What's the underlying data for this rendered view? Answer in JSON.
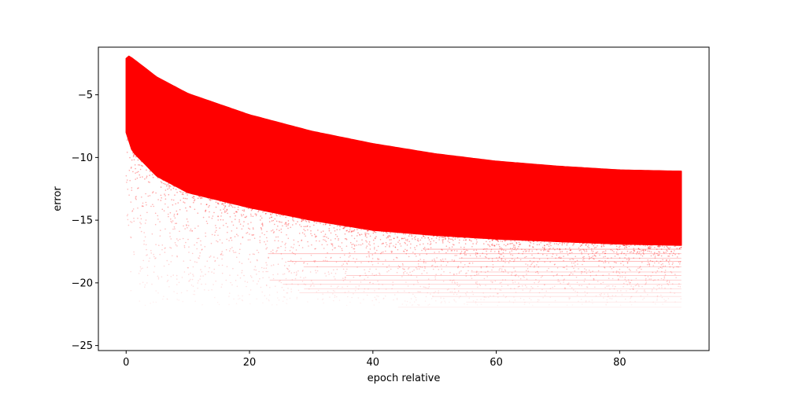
{
  "chart_data": {
    "type": "scatter",
    "title": "",
    "xlabel": "epoch relative",
    "ylabel": "error",
    "xlim": [
      -4.5,
      94.5
    ],
    "ylim": [
      -25.4,
      -1.2
    ],
    "xticks": [
      0,
      20,
      40,
      60,
      80
    ],
    "yticks": [
      -25,
      -20,
      -15,
      -10,
      -5
    ],
    "xtick_labels": [
      "0",
      "20",
      "40",
      "60",
      "80"
    ],
    "ytick_labels": [
      "−25",
      "−20",
      "−15",
      "−10",
      "−5"
    ],
    "grid": false,
    "legend": "none",
    "series": [
      {
        "color": "#ff0000",
        "marker": "point",
        "alpha": "low",
        "x_range": [
          0,
          90
        ],
        "upper_envelope": {
          "x": [
            0,
            0.5,
            5,
            10,
            20,
            30,
            40,
            50,
            60,
            70,
            80,
            90
          ],
          "y": [
            -2.1,
            -1.9,
            -3.6,
            -4.9,
            -6.6,
            -7.9,
            -8.9,
            -9.7,
            -10.3,
            -10.7,
            -11.0,
            -11.1
          ]
        },
        "dense_lower_bound": {
          "x": [
            0,
            1,
            5,
            10,
            20,
            30,
            40,
            50,
            60,
            70,
            80,
            90
          ],
          "y": [
            -8.0,
            -9.5,
            -11.5,
            -12.8,
            -14.0,
            -15.0,
            -15.8,
            -16.2,
            -16.5,
            -16.7,
            -16.9,
            -17.0
          ]
        },
        "sparse_tail_min": -21.8
      }
    ]
  }
}
